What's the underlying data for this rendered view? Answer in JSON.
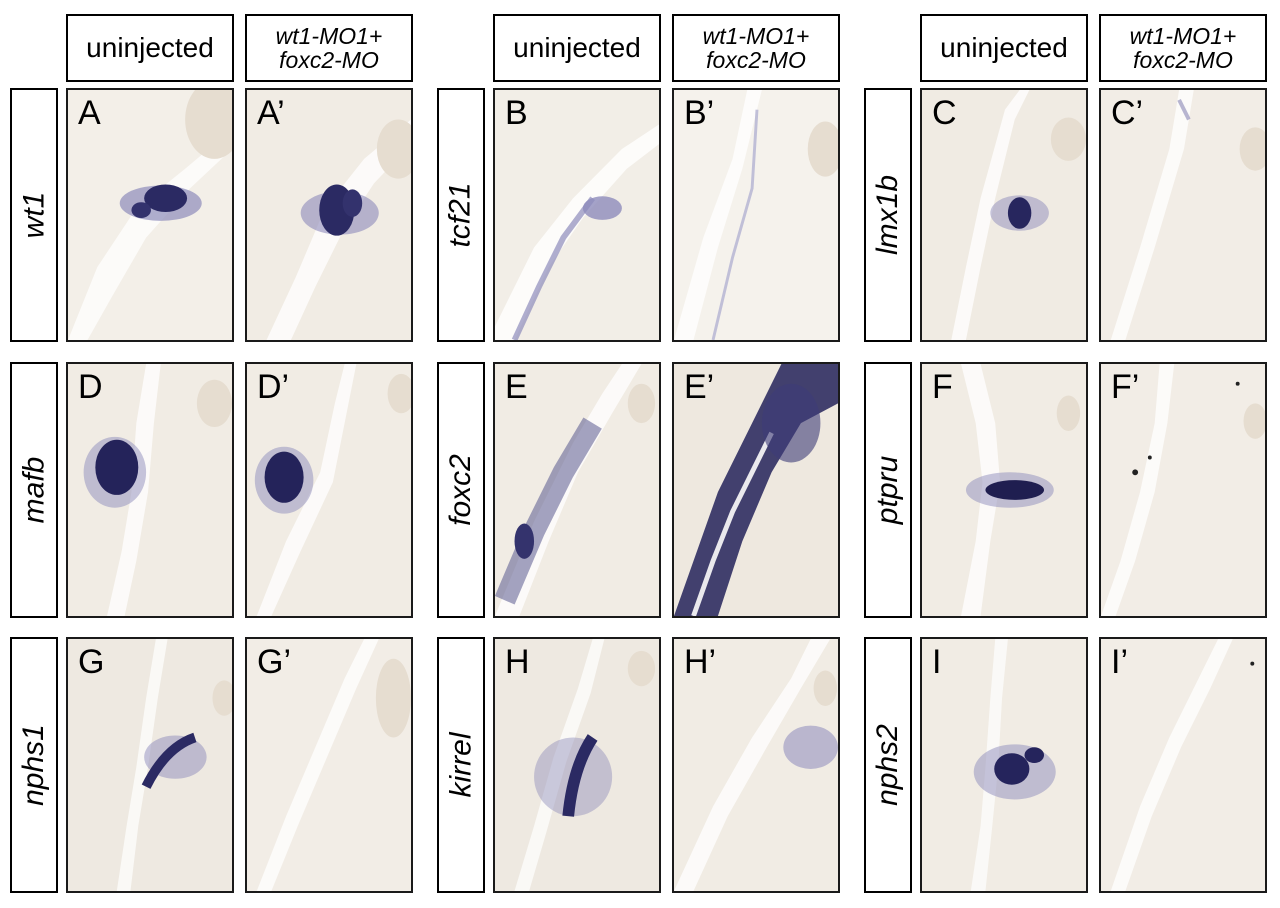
{
  "column_headers": [
    {
      "label": "uninjected"
    },
    {
      "line1": "wt1-MO1+",
      "line2": "foxc2-MO"
    },
    {
      "label": "uninjected"
    },
    {
      "line1": "wt1-MO1+",
      "line2": "foxc2-MO"
    },
    {
      "label": "uninjected"
    },
    {
      "line1": "wt1-MO1+",
      "line2": "foxc2-MO"
    }
  ],
  "row_labels": [
    "wt1",
    "tcf21",
    "lmx1b",
    "mafb",
    "foxc2",
    "ptpru",
    "nphs1",
    "kirrel",
    "nphs2"
  ],
  "panels": [
    {
      "label": "A",
      "gene": "wt1",
      "stain": "strong",
      "color": "#2b2a63"
    },
    {
      "label": "A’",
      "gene": "wt1",
      "stain": "strong",
      "color": "#2b2a63"
    },
    {
      "label": "B",
      "gene": "tcf21",
      "stain": "weak",
      "color": "#6b6aa0"
    },
    {
      "label": "B’",
      "gene": "tcf21",
      "stain": "none",
      "color": "#9a98c0"
    },
    {
      "label": "C",
      "gene": "lmx1b",
      "stain": "medium",
      "color": "#27265e"
    },
    {
      "label": "C’",
      "gene": "lmx1b",
      "stain": "none",
      "color": "#9a98c0"
    },
    {
      "label": "D",
      "gene": "mafb",
      "stain": "strong",
      "color": "#24235a"
    },
    {
      "label": "D’",
      "gene": "mafb",
      "stain": "strong",
      "color": "#24235a"
    },
    {
      "label": "E",
      "gene": "foxc2",
      "stain": "medium",
      "color": "#34336d"
    },
    {
      "label": "E’",
      "gene": "foxc2",
      "stain": "strong",
      "color": "#1e1d4d"
    },
    {
      "label": "F",
      "gene": "ptpru",
      "stain": "medium",
      "color": "#1f1e50"
    },
    {
      "label": "F’",
      "gene": "ptpru",
      "stain": "none",
      "color": "#9a98c0"
    },
    {
      "label": "G",
      "gene": "nphs1",
      "stain": "medium",
      "color": "#2b2a63"
    },
    {
      "label": "G’",
      "gene": "nphs1",
      "stain": "none",
      "color": "#9a98c0"
    },
    {
      "label": "H",
      "gene": "kirrel",
      "stain": "medium",
      "color": "#2b2a63"
    },
    {
      "label": "H’",
      "gene": "kirrel",
      "stain": "weak",
      "color": "#6b6aa0"
    },
    {
      "label": "I",
      "gene": "nphs2",
      "stain": "medium",
      "color": "#25245c"
    },
    {
      "label": "I’",
      "gene": "nphs2",
      "stain": "none",
      "color": "#9a98c0"
    }
  ],
  "colors": {
    "tissue_background": "#f3efe8",
    "tissue_texture": "#d8cfc2",
    "gap_white": "#ffffff",
    "stain_dark": "#1e1d4d",
    "stain_light": "#8d8bbb"
  }
}
